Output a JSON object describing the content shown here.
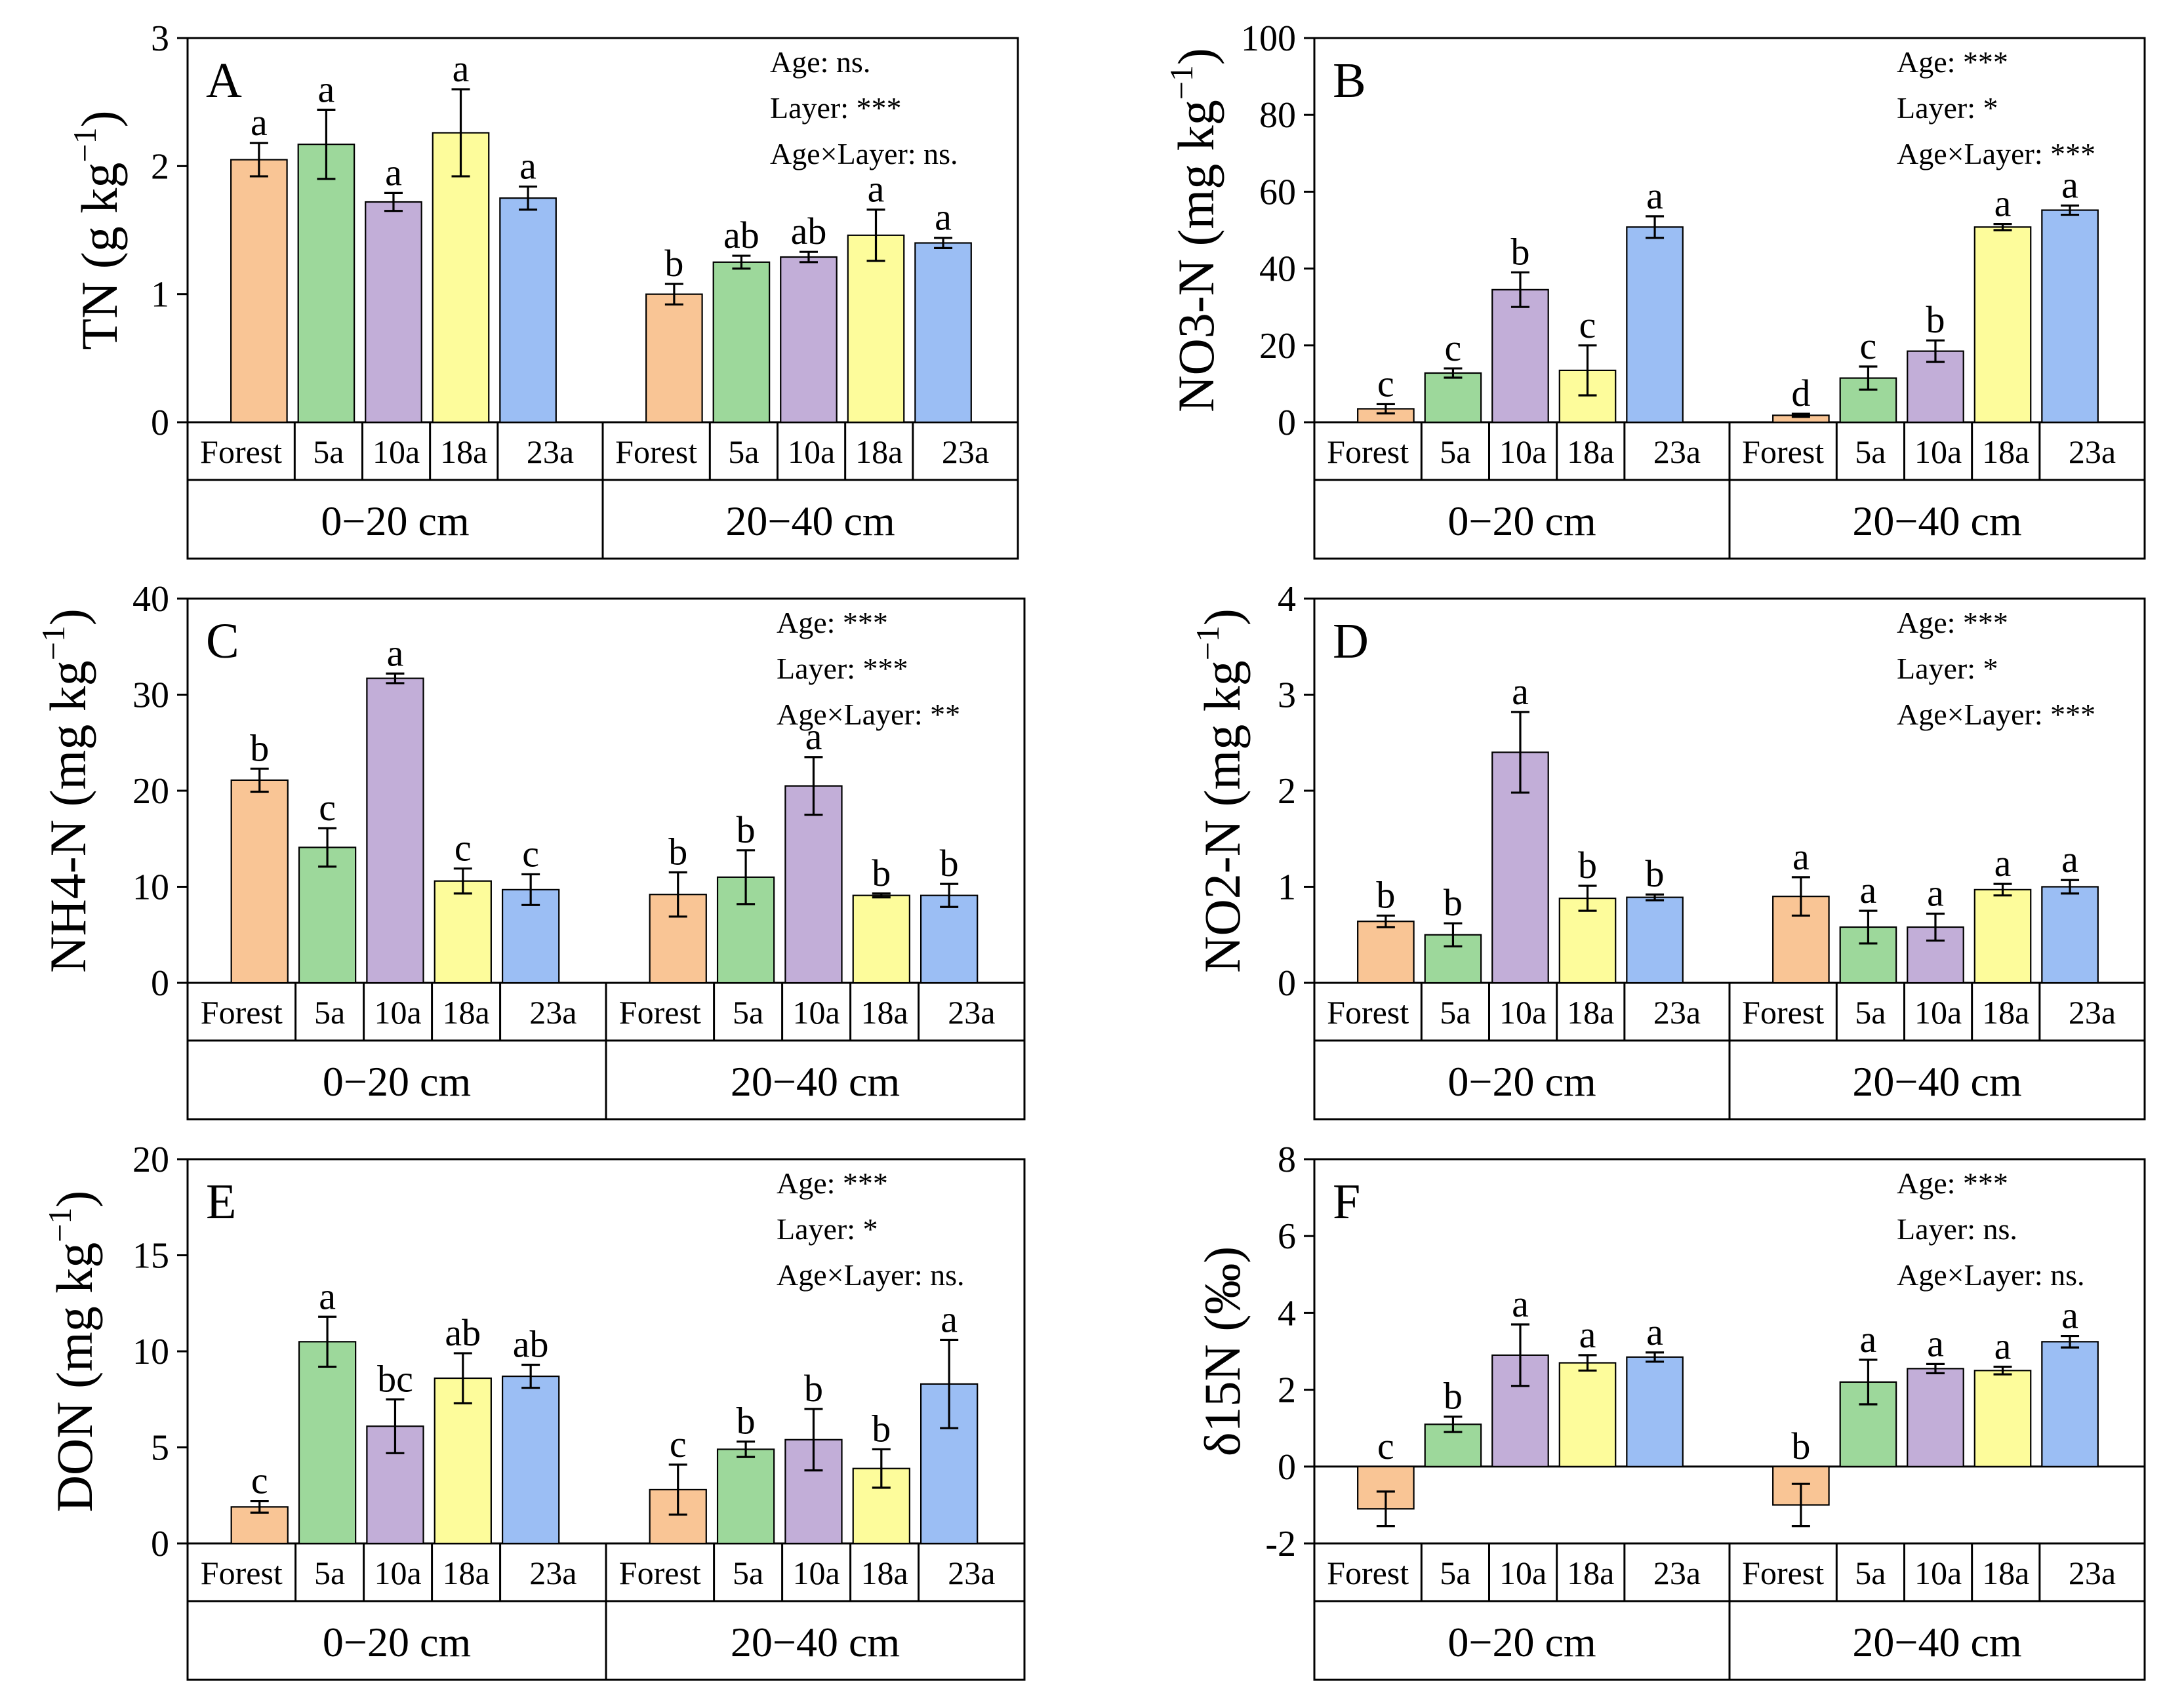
{
  "chart_data": [
    {
      "panel": "A",
      "type": "bar",
      "ylabel_main": "TN (g kg",
      "ylabel_sup": "−1",
      "ylabel_end": ")",
      "ylim": [
        0,
        3
      ],
      "yticks": [
        0,
        1,
        2,
        3
      ],
      "ytick_labels": [
        "0",
        "1",
        "2",
        "3"
      ],
      "groups": [
        "0−20 cm",
        "20−40 cm"
      ],
      "categories": [
        "Forest",
        "5a",
        "10a",
        "18a",
        "23a"
      ],
      "series": [
        {
          "group": "0−20 cm",
          "values": [
            2.05,
            2.17,
            1.72,
            2.26,
            1.75
          ],
          "errors": [
            0.13,
            0.27,
            0.07,
            0.34,
            0.09
          ],
          "letters": [
            "a",
            "a",
            "a",
            "a",
            "a"
          ]
        },
        {
          "group": "20−40 cm",
          "values": [
            1.0,
            1.25,
            1.29,
            1.46,
            1.4
          ],
          "errors": [
            0.08,
            0.05,
            0.04,
            0.2,
            0.04
          ],
          "letters": [
            "b",
            "ab",
            "ab",
            "a",
            "a"
          ]
        }
      ],
      "stats": [
        "Age: ns.",
        "Layer: ***",
        "Age×Layer: ns."
      ]
    },
    {
      "panel": "B",
      "type": "bar",
      "ylabel_main": "NO3-N (mg kg",
      "ylabel_sup": "−1",
      "ylabel_end": ")",
      "ylim": [
        0,
        100
      ],
      "yticks": [
        0,
        20,
        40,
        60,
        80,
        100
      ],
      "ytick_labels": [
        "0",
        "20",
        "40",
        "60",
        "80",
        "100"
      ],
      "groups": [
        "0−20 cm",
        "20−40 cm"
      ],
      "categories": [
        "Forest",
        "5a",
        "10a",
        "18a",
        "23a"
      ],
      "series": [
        {
          "group": "0−20 cm",
          "values": [
            3.5,
            12.8,
            34.5,
            13.5,
            50.8
          ],
          "errors": [
            1.2,
            1.2,
            4.5,
            6.5,
            2.8
          ],
          "letters": [
            "c",
            "c",
            "b",
            "c",
            "a"
          ]
        },
        {
          "group": "20−40 cm",
          "values": [
            1.8,
            11.5,
            18.5,
            50.8,
            55.2
          ],
          "errors": [
            0.4,
            3.0,
            2.8,
            0.8,
            1.2
          ],
          "letters": [
            "d",
            "c",
            "b",
            "a",
            "a"
          ]
        }
      ],
      "stats": [
        "Age: ***",
        "Layer: *",
        "Age×Layer: ***"
      ]
    },
    {
      "panel": "C",
      "type": "bar",
      "ylabel_main": "NH4-N (mg kg",
      "ylabel_sup": "−1",
      "ylabel_end": ")",
      "ylim": [
        0,
        40
      ],
      "yticks": [
        0,
        10,
        20,
        30,
        40
      ],
      "ytick_labels": [
        "0",
        "10",
        "20",
        "30",
        "40"
      ],
      "groups": [
        "0−20 cm",
        "20−40 cm"
      ],
      "categories": [
        "Forest",
        "5a",
        "10a",
        "18a",
        "23a"
      ],
      "series": [
        {
          "group": "0−20 cm",
          "values": [
            21.1,
            14.1,
            31.7,
            10.6,
            9.7
          ],
          "errors": [
            1.2,
            2.0,
            0.5,
            1.3,
            1.6
          ],
          "letters": [
            "b",
            "c",
            "a",
            "c",
            "c"
          ]
        },
        {
          "group": "20−40 cm",
          "values": [
            9.2,
            11.0,
            20.5,
            9.1,
            9.1
          ],
          "errors": [
            2.3,
            2.8,
            3.0,
            0.2,
            1.2
          ],
          "letters": [
            "b",
            "b",
            "a",
            "b",
            "b"
          ]
        }
      ],
      "stats": [
        "Age: ***",
        "Layer: ***",
        "Age×Layer: **"
      ]
    },
    {
      "panel": "D",
      "type": "bar",
      "ylabel_main": "NO2-N (mg kg",
      "ylabel_sup": "−1",
      "ylabel_end": ")",
      "ylim": [
        0,
        4
      ],
      "yticks": [
        0,
        1,
        2,
        3,
        4
      ],
      "ytick_labels": [
        "0",
        "1",
        "2",
        "3",
        "4"
      ],
      "groups": [
        "0−20 cm",
        "20−40 cm"
      ],
      "categories": [
        "Forest",
        "5a",
        "10a",
        "18a",
        "23a"
      ],
      "series": [
        {
          "group": "0−20 cm",
          "values": [
            0.64,
            0.5,
            2.4,
            0.88,
            0.89
          ],
          "errors": [
            0.06,
            0.12,
            0.42,
            0.13,
            0.03
          ],
          "letters": [
            "b",
            "b",
            "a",
            "b",
            "b"
          ]
        },
        {
          "group": "20−40 cm",
          "values": [
            0.9,
            0.58,
            0.58,
            0.97,
            1.0
          ],
          "errors": [
            0.2,
            0.17,
            0.14,
            0.06,
            0.07
          ],
          "letters": [
            "a",
            "a",
            "a",
            "a",
            "a"
          ]
        }
      ],
      "stats": [
        "Age: ***",
        "Layer: *",
        "Age×Layer: ***"
      ]
    },
    {
      "panel": "E",
      "type": "bar",
      "ylabel_main": "DON (mg kg",
      "ylabel_sup": "−1",
      "ylabel_end": ")",
      "ylim": [
        0,
        20
      ],
      "yticks": [
        0,
        5,
        10,
        15,
        20
      ],
      "ytick_labels": [
        "0",
        "5",
        "10",
        "15",
        "20"
      ],
      "groups": [
        "0−20 cm",
        "20−40 cm"
      ],
      "categories": [
        "Forest",
        "5a",
        "10a",
        "18a",
        "23a"
      ],
      "series": [
        {
          "group": "0−20 cm",
          "values": [
            1.9,
            10.5,
            6.1,
            8.6,
            8.7
          ],
          "errors": [
            0.3,
            1.3,
            1.4,
            1.3,
            0.6
          ],
          "letters": [
            "c",
            "a",
            "bc",
            "ab",
            "ab"
          ]
        },
        {
          "group": "20−40 cm",
          "values": [
            2.8,
            4.9,
            5.4,
            3.9,
            8.3
          ],
          "errors": [
            1.3,
            0.4,
            1.6,
            1.0,
            2.3
          ],
          "letters": [
            "c",
            "b",
            "b",
            "b",
            "a"
          ]
        }
      ],
      "stats": [
        "Age: ***",
        "Layer: *",
        "Age×Layer: ns."
      ]
    },
    {
      "panel": "F",
      "type": "bar",
      "ylabel_main": "δ15N (‰)",
      "ylabel_sup": "",
      "ylabel_end": "",
      "ylim": [
        -2,
        8
      ],
      "yticks": [
        -2,
        0,
        2,
        4,
        6,
        8
      ],
      "ytick_labels": [
        "-2",
        "0",
        "2",
        "4",
        "6",
        "8"
      ],
      "groups": [
        "0−20 cm",
        "20−40 cm"
      ],
      "categories": [
        "Forest",
        "5a",
        "10a",
        "18a",
        "23a"
      ],
      "series": [
        {
          "group": "0−20 cm",
          "values": [
            -1.1,
            1.1,
            2.9,
            2.7,
            2.85
          ],
          "errors": [
            0.45,
            0.2,
            0.8,
            0.2,
            0.12
          ],
          "letters": [
            "c",
            "b",
            "a",
            "a",
            "a"
          ]
        },
        {
          "group": "20−40 cm",
          "values": [
            -1.0,
            2.2,
            2.55,
            2.5,
            3.25
          ],
          "errors": [
            0.55,
            0.58,
            0.12,
            0.1,
            0.15
          ],
          "letters": [
            "b",
            "a",
            "a",
            "a",
            "a"
          ]
        }
      ],
      "stats": [
        "Age: ***",
        "Layer: ns.",
        "Age×Layer: ns."
      ]
    }
  ],
  "colors": {
    "Forest": "#F9C595",
    "5a": "#9DD89B",
    "10a": "#C2AED8",
    "18a": "#FDFC9B",
    "23a": "#9BBEF4"
  }
}
